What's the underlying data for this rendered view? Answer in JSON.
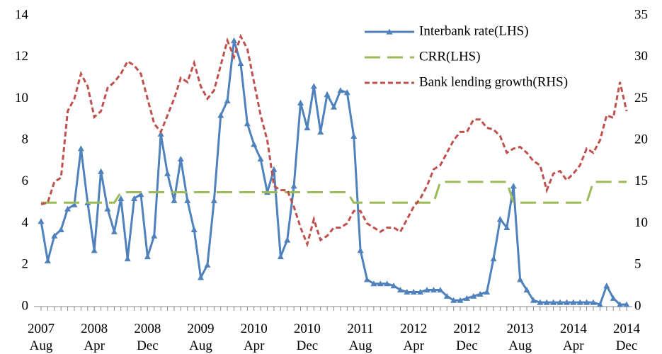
{
  "chart_data": {
    "type": "line",
    "categories": [
      "2007\nAug",
      null,
      null,
      null,
      null,
      null,
      null,
      null,
      "2008\nApr",
      null,
      null,
      null,
      null,
      null,
      null,
      null,
      "2008\nDec",
      null,
      null,
      null,
      null,
      null,
      null,
      null,
      "2009\nAug",
      null,
      null,
      null,
      null,
      null,
      null,
      null,
      "2010\nApr",
      null,
      null,
      null,
      null,
      null,
      null,
      null,
      "2010\nDec",
      null,
      null,
      null,
      null,
      null,
      null,
      null,
      "2011\nAug",
      null,
      null,
      null,
      null,
      null,
      null,
      null,
      "2012\nApr",
      null,
      null,
      null,
      null,
      null,
      null,
      null,
      "2012\nDec",
      null,
      null,
      null,
      null,
      null,
      null,
      null,
      "2013\nAug",
      null,
      null,
      null,
      null,
      null,
      null,
      null,
      "2014\nApr",
      null,
      null,
      null,
      null,
      null,
      null,
      null,
      "2014\nDec"
    ],
    "series": [
      {
        "name": "Interbank rate(LHS)",
        "color": "#4f81bd",
        "marker": "triangle",
        "dash": "solid",
        "values": [
          4.1,
          2.2,
          3.4,
          3.7,
          4.7,
          4.9,
          7.6,
          5.0,
          2.7,
          6.5,
          4.7,
          3.6,
          5.2,
          2.3,
          5.2,
          5.4,
          2.4,
          3.4,
          8.3,
          6.4,
          5.1,
          7.1,
          5.1,
          3.7,
          1.4,
          2.0,
          5.1,
          9.2,
          9.9,
          12.8,
          11.7,
          8.8,
          7.8,
          7.1,
          5.5,
          6.6,
          2.4,
          3.2,
          5.8,
          9.8,
          8.6,
          10.6,
          8.4,
          10.2,
          9.6,
          10.4,
          10.3,
          8.2,
          2.7,
          1.3,
          1.1,
          1.1,
          1.1,
          1.0,
          0.8,
          0.7,
          0.7,
          0.7,
          0.8,
          0.8,
          0.8,
          0.5,
          0.3,
          0.3,
          0.4,
          0.5,
          0.6,
          0.7,
          2.3,
          4.2,
          3.8,
          5.8,
          1.3,
          0.8,
          0.3,
          0.2,
          0.2,
          0.2,
          0.2,
          0.2,
          0.2,
          0.2,
          0.2,
          0.2,
          0.1,
          1.0,
          0.4,
          0.1,
          0.1
        ]
      },
      {
        "name": "CRR(LHS)",
        "color": "#9bbb59",
        "marker": "none",
        "dash": "long",
        "values": [
          5.0,
          5.0,
          5.0,
          5.0,
          5.0,
          5.0,
          5.0,
          5.0,
          5.0,
          5.0,
          5.0,
          5.0,
          5.5,
          5.5,
          5.5,
          5.5,
          5.5,
          5.5,
          5.5,
          5.5,
          5.5,
          5.5,
          5.5,
          5.5,
          5.5,
          5.5,
          5.5,
          5.5,
          5.5,
          5.5,
          5.5,
          5.5,
          5.5,
          5.5,
          5.5,
          5.5,
          5.5,
          5.5,
          5.5,
          5.5,
          5.5,
          5.5,
          5.5,
          5.5,
          5.5,
          5.5,
          5.5,
          5.0,
          5.0,
          5.0,
          5.0,
          5.0,
          5.0,
          5.0,
          5.0,
          5.0,
          5.0,
          5.0,
          5.0,
          5.0,
          6.0,
          6.0,
          6.0,
          6.0,
          6.0,
          6.0,
          6.0,
          6.0,
          6.0,
          6.0,
          6.0,
          5.0,
          5.0,
          5.0,
          5.0,
          5.0,
          5.0,
          5.0,
          5.0,
          5.0,
          5.0,
          5.0,
          5.0,
          6.0,
          6.0,
          6.0,
          6.0,
          6.0,
          6.0
        ]
      },
      {
        "name": "Bank lending growth(RHS)",
        "color": "#c0504d",
        "marker": "none",
        "dash": "short",
        "axis": "y2",
        "values": [
          12.3,
          12.5,
          15,
          15.5,
          23.5,
          25,
          28,
          26.5,
          22.8,
          23.5,
          26.3,
          27,
          28,
          29.5,
          29,
          28,
          25,
          22,
          21,
          23,
          25,
          27.5,
          27,
          29.3,
          26.5,
          25,
          26,
          29,
          32,
          30,
          32.5,
          31,
          27,
          23,
          20,
          14.5,
          14,
          14,
          12,
          9.5,
          7.5,
          10.5,
          8,
          8.5,
          9.5,
          9.5,
          10,
          11.5,
          11.5,
          10,
          9.5,
          9,
          9.5,
          9.5,
          9,
          10.5,
          12,
          13,
          14.5,
          16.5,
          17,
          18.5,
          20,
          21,
          21,
          22.5,
          22.5,
          21.5,
          21.3,
          20.5,
          18.5,
          19,
          19.2,
          18.5,
          17.5,
          17,
          14,
          16,
          16.3,
          15.2,
          16,
          17,
          19,
          18.5,
          20,
          23,
          22.7,
          27,
          23.5
        ]
      }
    ],
    "ylim": [
      0,
      14
    ],
    "yticks": [
      0,
      2,
      4,
      6,
      8,
      10,
      12,
      14
    ],
    "y2lim": [
      0,
      35
    ],
    "y2ticks": [
      0,
      5,
      10,
      15,
      20,
      25,
      30,
      35
    ],
    "grid": false,
    "legend": "top-right"
  }
}
